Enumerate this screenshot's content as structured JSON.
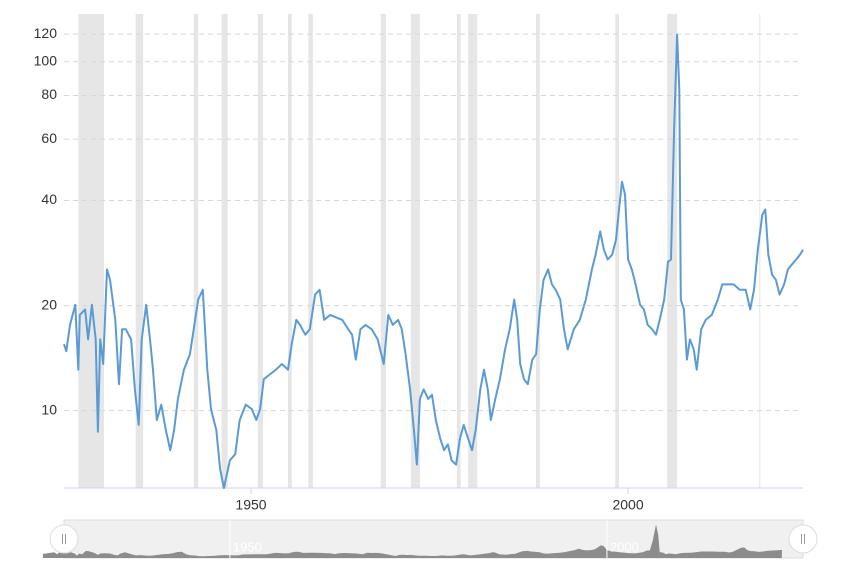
{
  "chart_data": {
    "type": "line",
    "log_scale": true,
    "grid": true,
    "color": "#5b9bd5",
    "band_color": "#e6e6e6",
    "xlim": [
      1925.2,
      2023.2
    ],
    "xticks": [
      1950,
      2000
    ],
    "ylim": [
      6,
      137
    ],
    "yticks": [
      10,
      20,
      40,
      60,
      80,
      100,
      120
    ],
    "shaded_ranges": [
      [
        1927.1,
        1930.5
      ],
      [
        1934.7,
        1935.7
      ],
      [
        1942.4,
        1943.0
      ],
      [
        1946.1,
        1946.9
      ],
      [
        1950.9,
        1951.6
      ],
      [
        1954.9,
        1955.4
      ],
      [
        1957.6,
        1958.2
      ],
      [
        1967.2,
        1967.9
      ],
      [
        1971.2,
        1972.4
      ],
      [
        1977.3,
        1977.8
      ],
      [
        1978.8,
        1980.0
      ],
      [
        1987.8,
        1988.3
      ],
      [
        1998.3,
        1998.8
      ],
      [
        2005.2,
        2006.5
      ],
      [
        2017.4,
        2017.5
      ]
    ],
    "x": [
      1925.2,
      1925.5,
      1926.0,
      1926.7,
      1927.1,
      1927.3,
      1928.0,
      1928.4,
      1928.9,
      1929.4,
      1929.7,
      1930.0,
      1930.4,
      1930.9,
      1931.3,
      1932.0,
      1932.5,
      1932.9,
      1933.4,
      1934.1,
      1934.6,
      1935.1,
      1935.5,
      1936.1,
      1936.6,
      1937.0,
      1937.5,
      1938.1,
      1938.7,
      1939.3,
      1939.8,
      1940.3,
      1941.1,
      1941.9,
      1942.4,
      1943.0,
      1943.6,
      1944.2,
      1944.7,
      1945.4,
      1945.9,
      1946.4,
      1947.2,
      1947.9,
      1948.5,
      1949.3,
      1950.1,
      1950.7,
      1951.2,
      1951.7,
      1952.5,
      1953.3,
      1954.1,
      1954.9,
      1955.4,
      1956.0,
      1956.5,
      1957.2,
      1957.8,
      1958.5,
      1959.1,
      1959.7,
      1960.5,
      1961.3,
      1962.1,
      1962.9,
      1963.4,
      1963.9,
      1964.5,
      1965.2,
      1966.0,
      1966.8,
      1967.6,
      1968.2,
      1968.8,
      1969.5,
      1970.0,
      1970.5,
      1971.1,
      1971.6,
      1972.0,
      1972.4,
      1972.9,
      1973.5,
      1974.0,
      1974.5,
      1975.1,
      1975.6,
      1976.1,
      1976.6,
      1977.2,
      1977.7,
      1978.2,
      1978.8,
      1979.3,
      1979.8,
      1980.4,
      1980.9,
      1981.4,
      1981.8,
      1982.4,
      1983.0,
      1983.7,
      1984.3,
      1984.9,
      1985.3,
      1985.7,
      1986.2,
      1986.7,
      1987.3,
      1987.8,
      1988.3,
      1988.8,
      1989.4,
      1989.9,
      1990.4,
      1991.0,
      1991.5,
      1992.0,
      1992.8,
      1993.6,
      1994.4,
      1995.2,
      1995.7,
      1996.3,
      1996.8,
      1997.3,
      1997.9,
      1998.4,
      1998.8,
      1999.2,
      1999.6,
      2000.0,
      2000.5,
      2001.0,
      2001.6,
      2002.1,
      2002.6,
      2003.2,
      2003.7,
      2004.2,
      2004.8,
      2005.3,
      2005.7,
      2006.1,
      2006.5,
      2006.8,
      2007.0,
      2007.4,
      2007.8,
      2008.2,
      2008.7,
      2009.1,
      2009.7,
      2010.3,
      2011.1,
      2011.9,
      2012.5,
      2013.2,
      2014.0,
      2014.8,
      2015.6,
      2016.2,
      2016.7,
      2017.2,
      2017.8,
      2018.2,
      2018.6,
      2019.1,
      2019.6,
      2020.1,
      2020.7,
      2021.2,
      2021.7,
      2022.3,
      2022.8,
      2023.2
    ],
    "values": [
      15.5,
      14.8,
      17.6,
      20.1,
      13.1,
      18.8,
      19.5,
      16.0,
      20.1,
      16.0,
      8.7,
      16.0,
      13.6,
      25.4,
      23.7,
      18.2,
      11.9,
      17.1,
      17.1,
      16.0,
      11.5,
      9.1,
      16.0,
      20.1,
      16.0,
      13.1,
      9.4,
      10.4,
      8.8,
      7.7,
      8.8,
      10.8,
      13.1,
      14.5,
      17.1,
      20.8,
      22.2,
      13.1,
      10.1,
      8.8,
      6.8,
      6.0,
      7.2,
      7.5,
      9.4,
      10.4,
      10.1,
      9.4,
      10.1,
      12.3,
      12.7,
      13.1,
      13.6,
      13.1,
      15.5,
      18.2,
      17.6,
      16.5,
      17.1,
      21.5,
      22.2,
      18.2,
      18.8,
      18.5,
      18.2,
      17.1,
      16.5,
      14.0,
      17.1,
      17.6,
      17.1,
      16.0,
      13.6,
      18.8,
      17.6,
      18.2,
      17.1,
      14.5,
      11.5,
      8.8,
      7.0,
      10.8,
      11.5,
      10.8,
      11.1,
      9.4,
      8.3,
      7.7,
      8.0,
      7.2,
      7.0,
      8.3,
      9.1,
      8.3,
      7.7,
      8.8,
      11.5,
      13.1,
      11.5,
      9.4,
      10.8,
      12.3,
      15.0,
      17.1,
      20.8,
      18.2,
      13.6,
      12.3,
      11.9,
      14.0,
      14.5,
      19.5,
      23.7,
      25.4,
      23.0,
      22.2,
      20.8,
      17.1,
      15.0,
      17.1,
      18.2,
      20.8,
      25.4,
      28.0,
      32.6,
      28.9,
      27.1,
      28.0,
      30.9,
      37.7,
      45.3,
      41.6,
      27.1,
      25.4,
      23.0,
      20.1,
      19.5,
      17.6,
      17.1,
      16.5,
      18.2,
      20.8,
      26.7,
      27.1,
      63.8,
      119.5,
      83.2,
      20.8,
      19.5,
      14.0,
      16.0,
      15.0,
      13.1,
      17.1,
      18.2,
      18.8,
      20.8,
      23.0,
      23.0,
      23.0,
      22.2,
      22.2,
      19.5,
      22.2,
      28.9,
      36.4,
      37.7,
      28.0,
      24.5,
      23.7,
      21.5,
      23.0,
      25.4,
      26.2,
      27.1,
      28.0,
      28.9
    ],
    "navigator": {
      "xlim": [
        1928.0,
        2026.0
      ],
      "ylim": [
        0,
        135
      ],
      "color": "#8c8c8c"
    }
  }
}
